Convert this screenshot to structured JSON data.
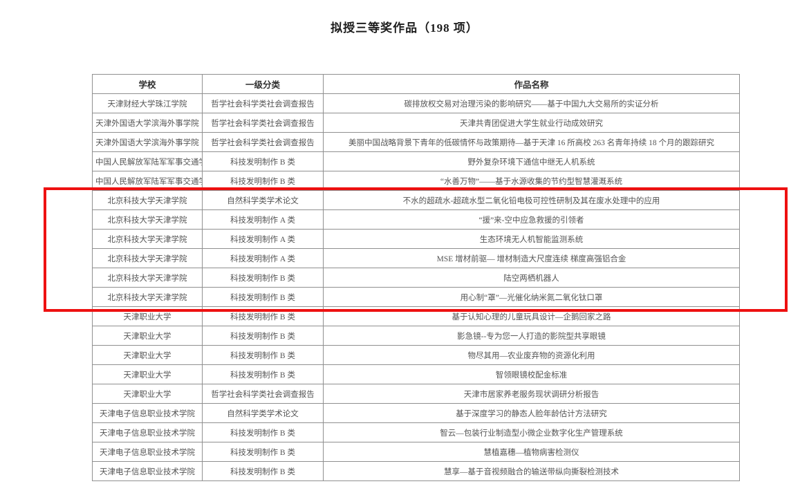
{
  "page": {
    "title": "拟授三等奖作品（198 项）"
  },
  "highlight": {
    "color": "#ee1111",
    "rows_enclosed": "6-11"
  },
  "table": {
    "headers": {
      "school": "学校",
      "category": "一级分类",
      "work": "作品名称"
    },
    "rows": [
      {
        "school": "天津财经大学珠江学院",
        "category": "哲学社会科学类社会调查报告",
        "work": "碳排放权交易对治理污染的影响研究——基于中国九大交易所的实证分析",
        "highlighted": false
      },
      {
        "school": "天津外国语大学滨海外事学院",
        "category": "哲学社会科学类社会调查报告",
        "work": "天津共青团促进大学生就业行动成效研究",
        "highlighted": false
      },
      {
        "school": "天津外国语大学滨海外事学院",
        "category": "哲学社会科学类社会调查报告",
        "work": "美丽中国战略背景下青年的低碳情怀与政策期待—基于天津 16 所高校 263 名青年持续 18 个月的跟踪研究",
        "highlighted": false
      },
      {
        "school": "中国人民解放军陆军军事交通学院",
        "category": "科技发明制作 B 类",
        "work": "野外复杂环境下通信中继无人机系统",
        "highlighted": false
      },
      {
        "school": "中国人民解放军陆军军事交通学院",
        "category": "科技发明制作 B 类",
        "work": "“水善万物”——基于水源收集的节约型智慧灌溉系统",
        "highlighted": false
      },
      {
        "school": "北京科技大学天津学院",
        "category": "自然科学类学术论文",
        "work": "不水的超疏水-超疏水型二氧化铅电极可控性研制及其在废水处理中的应用",
        "highlighted": true
      },
      {
        "school": "北京科技大学天津学院",
        "category": "科技发明制作 A 类",
        "work": "“援”来-空中应急救援的引领者",
        "highlighted": true
      },
      {
        "school": "北京科技大学天津学院",
        "category": "科技发明制作 A 类",
        "work": "生态环境无人机智能监测系统",
        "highlighted": true
      },
      {
        "school": "北京科技大学天津学院",
        "category": "科技发明制作 A 类",
        "work": "MSE 增材前驱— 增材制造大尺度连续 梯度高强铝合金",
        "highlighted": true
      },
      {
        "school": "北京科技大学天津学院",
        "category": "科技发明制作 B 类",
        "work": "陆空两栖机器人",
        "highlighted": true
      },
      {
        "school": "北京科技大学天津学院",
        "category": "科技发明制作 B 类",
        "work": "用心制“罩”—光催化纳米氮二氧化钛口罩",
        "highlighted": true
      },
      {
        "school": "天津职业大学",
        "category": "科技发明制作 B 类",
        "work": "基于认知心理的儿童玩具设计—企鹅回家之路",
        "highlighted": false
      },
      {
        "school": "天津职业大学",
        "category": "科技发明制作 B 类",
        "work": "影急镜--专为您一人打造的影院型共享眼镜",
        "highlighted": false
      },
      {
        "school": "天津职业大学",
        "category": "科技发明制作 B 类",
        "work": "物尽其用—农业废弃物的资源化利用",
        "highlighted": false
      },
      {
        "school": "天津职业大学",
        "category": "科技发明制作 B 类",
        "work": "智领眼镜校配金标准",
        "highlighted": false
      },
      {
        "school": "天津职业大学",
        "category": "哲学社会科学类社会调查报告",
        "work": "天津市居家养老服务现状调研分析报告",
        "highlighted": false
      },
      {
        "school": "天津电子信息职业技术学院",
        "category": "自然科学类学术论文",
        "work": "基于深度学习的静态人脸年龄估计方法研究",
        "highlighted": false
      },
      {
        "school": "天津电子信息职业技术学院",
        "category": "科技发明制作 B 类",
        "work": "智云—包装行业制造型小微企业数字化生产管理系统",
        "highlighted": false
      },
      {
        "school": "天津电子信息职业技术学院",
        "category": "科技发明制作 B 类",
        "work": "慧植嘉穗—植物病害检测仪",
        "highlighted": false
      },
      {
        "school": "天津电子信息职业技术学院",
        "category": "科技发明制作 B 类",
        "work": "慧享—基于音视频融合的输送带纵向撕裂检测技术",
        "highlighted": false
      }
    ]
  }
}
